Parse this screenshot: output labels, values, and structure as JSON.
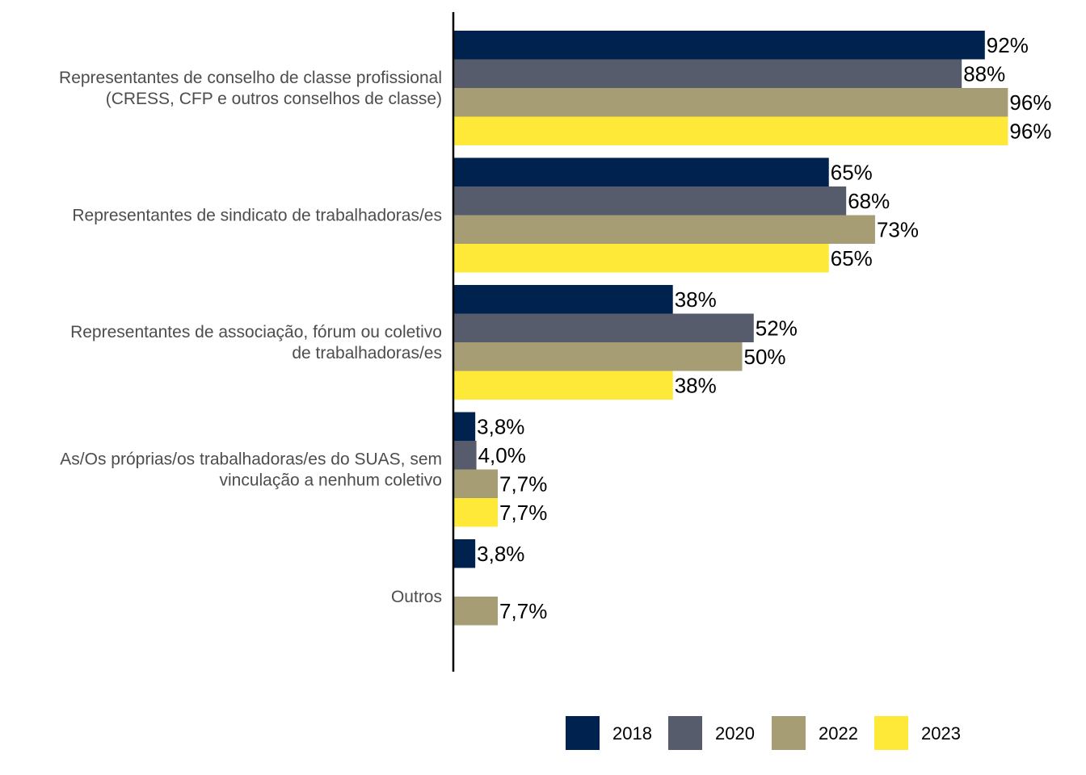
{
  "chart_data": {
    "type": "bar",
    "orientation": "horizontal",
    "title": "",
    "xlabel": "",
    "ylabel": "",
    "xlim": [
      0,
      100
    ],
    "grid": false,
    "legend_position": "bottom",
    "categories": [
      [
        "Representantes de conselho de classe profissional",
        "(CRESS, CFP e outros conselhos de classe)"
      ],
      [
        "Representantes de sindicato de trabalhadoras/es"
      ],
      [
        "Representantes de associação, fórum ou coletivo",
        "de trabalhadoras/es"
      ],
      [
        "As/Os próprias/os trabalhadoras/es do SUAS, sem",
        "vinculação a nenhum coletivo"
      ],
      [
        "Outros"
      ]
    ],
    "series": [
      {
        "name": "2018",
        "color": "#00224e",
        "values": [
          92,
          65,
          38,
          3.8,
          3.8
        ],
        "labels": [
          "92%",
          "65%",
          "38%",
          "3,8%",
          "3,8%"
        ]
      },
      {
        "name": "2020",
        "color": "#575c6d",
        "values": [
          88,
          68,
          52,
          4.0,
          null
        ],
        "labels": [
          "88%",
          "68%",
          "52%",
          "4,0%",
          null
        ]
      },
      {
        "name": "2022",
        "color": "#a69d75",
        "values": [
          96,
          73,
          50,
          7.7,
          7.7
        ],
        "labels": [
          "96%",
          "73%",
          "50%",
          "7,7%",
          "7,7%"
        ]
      },
      {
        "name": "2023",
        "color": "#fee838",
        "values": [
          96,
          65,
          38,
          7.7,
          null
        ],
        "labels": [
          "96%",
          "65%",
          "38%",
          "7,7%",
          null
        ]
      }
    ]
  }
}
